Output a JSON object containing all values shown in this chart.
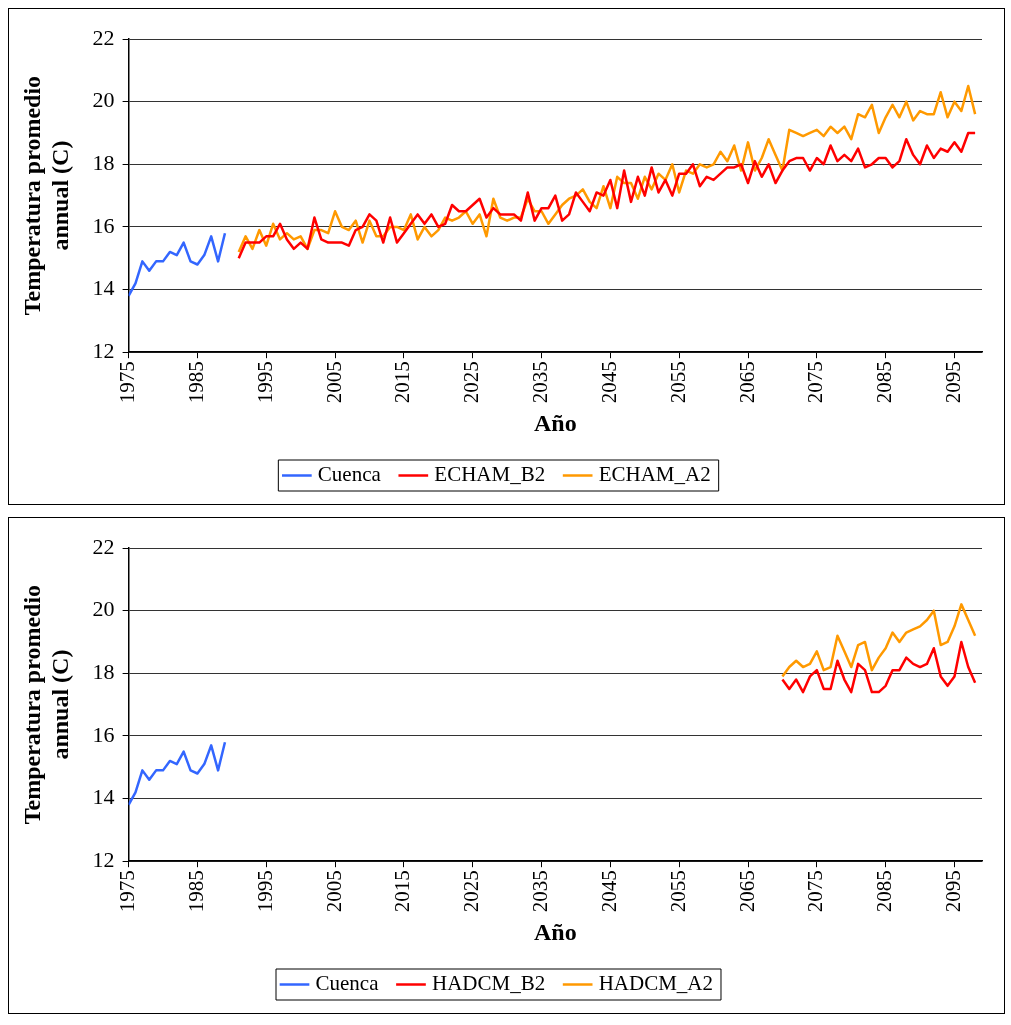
{
  "chart_data": [
    {
      "type": "line",
      "xlabel": "Año",
      "ylabel": "Temperatura promedio annual (C)",
      "xlim": [
        1975,
        2099
      ],
      "xticks": [
        1975,
        1985,
        1995,
        2005,
        2015,
        2025,
        2035,
        2045,
        2055,
        2065,
        2075,
        2085,
        2095
      ],
      "ylim": [
        12,
        22
      ],
      "yticks": [
        12,
        14,
        16,
        18,
        20,
        22
      ],
      "grid": "y",
      "legend": "bottom",
      "marker": "none",
      "series": [
        {
          "name": "Cuenca",
          "color": "#3366ff",
          "x": [
            1975,
            1976,
            1977,
            1978,
            1979,
            1980,
            1981,
            1982,
            1983,
            1984,
            1985,
            1986,
            1987,
            1988,
            1989
          ],
          "values": [
            13.8,
            14.2,
            14.9,
            14.6,
            14.9,
            14.9,
            15.2,
            15.1,
            15.5,
            14.9,
            14.8,
            15.1,
            15.7,
            14.9,
            15.8
          ]
        },
        {
          "name": "ECHAM_B2",
          "color": "#ff0000",
          "x": [
            1991,
            1992,
            1993,
            1994,
            1995,
            1996,
            1997,
            1998,
            1999,
            2000,
            2001,
            2002,
            2003,
            2004,
            2005,
            2006,
            2007,
            2008,
            2009,
            2010,
            2011,
            2012,
            2013,
            2014,
            2015,
            2016,
            2017,
            2018,
            2019,
            2020,
            2021,
            2022,
            2023,
            2024,
            2025,
            2026,
            2027,
            2028,
            2029,
            2030,
            2031,
            2032,
            2033,
            2034,
            2035,
            2036,
            2037,
            2038,
            2039,
            2040,
            2041,
            2042,
            2043,
            2044,
            2045,
            2046,
            2047,
            2048,
            2049,
            2050,
            2051,
            2052,
            2053,
            2054,
            2055,
            2056,
            2057,
            2058,
            2059,
            2060,
            2061,
            2062,
            2063,
            2064,
            2065,
            2066,
            2067,
            2068,
            2069,
            2070,
            2071,
            2072,
            2073,
            2074,
            2075,
            2076,
            2077,
            2078,
            2079,
            2080,
            2081,
            2082,
            2083,
            2084,
            2085,
            2086,
            2087,
            2088,
            2089,
            2090,
            2091,
            2092,
            2093,
            2094,
            2095,
            2096,
            2097,
            2098
          ],
          "values": [
            15.0,
            15.5,
            15.5,
            15.5,
            15.7,
            15.7,
            16.1,
            15.6,
            15.3,
            15.5,
            15.3,
            16.3,
            15.6,
            15.5,
            15.5,
            15.5,
            15.4,
            15.9,
            16.0,
            16.4,
            16.2,
            15.5,
            16.3,
            15.5,
            15.8,
            16.1,
            16.4,
            16.1,
            16.4,
            16.0,
            16.1,
            16.7,
            16.5,
            16.5,
            16.7,
            16.9,
            16.3,
            16.6,
            16.4,
            16.4,
            16.4,
            16.2,
            17.1,
            16.2,
            16.6,
            16.6,
            17.0,
            16.2,
            16.4,
            17.1,
            16.8,
            16.5,
            17.1,
            17.0,
            17.5,
            16.6,
            17.8,
            16.8,
            17.6,
            17.0,
            17.9,
            17.1,
            17.5,
            17.0,
            17.7,
            17.7,
            18.0,
            17.3,
            17.6,
            17.5,
            17.7,
            17.9,
            17.9,
            18.0,
            17.4,
            18.1,
            17.6,
            18.0,
            17.4,
            17.8,
            18.1,
            18.2,
            18.2,
            17.8,
            18.2,
            18.0,
            18.6,
            18.1,
            18.3,
            18.1,
            18.5,
            17.9,
            18.0,
            18.2,
            18.2,
            17.9,
            18.1,
            18.8,
            18.3,
            18.0,
            18.6,
            18.2,
            18.5,
            18.4,
            18.7,
            18.4,
            19.0,
            19.0
          ]
        },
        {
          "name": "ECHAM_A2",
          "color": "#ff9900",
          "x": [
            1991,
            1992,
            1993,
            1994,
            1995,
            1996,
            1997,
            1998,
            1999,
            2000,
            2001,
            2002,
            2003,
            2004,
            2005,
            2006,
            2007,
            2008,
            2009,
            2010,
            2011,
            2012,
            2013,
            2014,
            2015,
            2016,
            2017,
            2018,
            2019,
            2020,
            2021,
            2022,
            2023,
            2024,
            2025,
            2026,
            2027,
            2028,
            2029,
            2030,
            2031,
            2032,
            2033,
            2034,
            2035,
            2036,
            2037,
            2038,
            2039,
            2040,
            2041,
            2042,
            2043,
            2044,
            2045,
            2046,
            2047,
            2048,
            2049,
            2050,
            2051,
            2052,
            2053,
            2054,
            2055,
            2056,
            2057,
            2058,
            2059,
            2060,
            2061,
            2062,
            2063,
            2064,
            2065,
            2066,
            2067,
            2068,
            2069,
            2070,
            2071,
            2072,
            2073,
            2074,
            2075,
            2076,
            2077,
            2078,
            2079,
            2080,
            2081,
            2082,
            2083,
            2084,
            2085,
            2086,
            2087,
            2088,
            2089,
            2090,
            2091,
            2092,
            2093,
            2094,
            2095,
            2096,
            2097,
            2098
          ],
          "values": [
            15.2,
            15.7,
            15.3,
            15.9,
            15.4,
            16.1,
            15.6,
            15.8,
            15.6,
            15.7,
            15.3,
            15.9,
            15.9,
            15.8,
            16.5,
            16.0,
            15.9,
            16.2,
            15.5,
            16.2,
            15.7,
            15.7,
            16.0,
            16.0,
            15.9,
            16.4,
            15.6,
            16.0,
            15.7,
            15.9,
            16.3,
            16.2,
            16.3,
            16.5,
            16.1,
            16.4,
            15.7,
            16.9,
            16.3,
            16.2,
            16.3,
            16.3,
            16.9,
            16.5,
            16.5,
            16.1,
            16.4,
            16.7,
            16.9,
            17.0,
            17.2,
            16.8,
            16.6,
            17.3,
            16.6,
            17.6,
            17.4,
            17.4,
            16.9,
            17.6,
            17.2,
            17.7,
            17.5,
            18.0,
            17.1,
            17.8,
            17.7,
            18.0,
            17.9,
            18.0,
            18.4,
            18.1,
            18.6,
            17.8,
            18.7,
            17.8,
            18.2,
            18.8,
            18.3,
            17.8,
            19.1,
            19.0,
            18.9,
            19.0,
            19.1,
            18.9,
            19.2,
            19.0,
            19.2,
            18.8,
            19.6,
            19.5,
            19.9,
            19.0,
            19.5,
            19.9,
            19.5,
            20.0,
            19.4,
            19.7,
            19.6,
            19.6,
            20.3,
            19.5,
            20.0,
            19.7,
            20.5,
            19.6
          ]
        }
      ]
    },
    {
      "type": "line",
      "xlabel": "Año",
      "ylabel": "Temperatura promedio annual (C)",
      "xlim": [
        1975,
        2099
      ],
      "xticks": [
        1975,
        1985,
        1995,
        2005,
        2015,
        2025,
        2035,
        2045,
        2055,
        2065,
        2075,
        2085,
        2095
      ],
      "ylim": [
        12,
        22
      ],
      "yticks": [
        12,
        14,
        16,
        18,
        20,
        22
      ],
      "grid": "y",
      "legend": "bottom",
      "marker": "none",
      "series": [
        {
          "name": "Cuenca",
          "color": "#3366ff",
          "x": [
            1975,
            1976,
            1977,
            1978,
            1979,
            1980,
            1981,
            1982,
            1983,
            1984,
            1985,
            1986,
            1987,
            1988,
            1989
          ],
          "values": [
            13.8,
            14.2,
            14.9,
            14.6,
            14.9,
            14.9,
            15.2,
            15.1,
            15.5,
            14.9,
            14.8,
            15.1,
            15.7,
            14.9,
            15.8
          ]
        },
        {
          "name": "HADCM_B2",
          "color": "#ff0000",
          "x": [
            2070,
            2071,
            2072,
            2073,
            2074,
            2075,
            2076,
            2077,
            2078,
            2079,
            2080,
            2081,
            2082,
            2083,
            2084,
            2085,
            2086,
            2087,
            2088,
            2089,
            2090,
            2091,
            2092,
            2093,
            2094,
            2095,
            2096,
            2097,
            2098
          ],
          "values": [
            17.8,
            17.5,
            17.8,
            17.4,
            17.9,
            18.1,
            17.5,
            17.5,
            18.4,
            17.8,
            17.4,
            18.3,
            18.1,
            17.4,
            17.4,
            17.6,
            18.1,
            18.1,
            18.5,
            18.3,
            18.2,
            18.3,
            18.8,
            17.9,
            17.6,
            17.9,
            19.0,
            18.2,
            17.7
          ]
        },
        {
          "name": "HADCM_A2",
          "color": "#ff9900",
          "x": [
            2070,
            2071,
            2072,
            2073,
            2074,
            2075,
            2076,
            2077,
            2078,
            2079,
            2080,
            2081,
            2082,
            2083,
            2084,
            2085,
            2086,
            2087,
            2088,
            2089,
            2090,
            2091,
            2092,
            2093,
            2094,
            2095,
            2096,
            2097,
            2098
          ],
          "values": [
            17.9,
            18.2,
            18.4,
            18.2,
            18.3,
            18.7,
            18.1,
            18.2,
            19.2,
            18.7,
            18.2,
            18.9,
            19.0,
            18.1,
            18.5,
            18.8,
            19.3,
            19.0,
            19.3,
            19.4,
            19.5,
            19.7,
            20.0,
            18.9,
            19.0,
            19.5,
            20.2,
            19.7,
            19.2
          ]
        }
      ]
    }
  ]
}
